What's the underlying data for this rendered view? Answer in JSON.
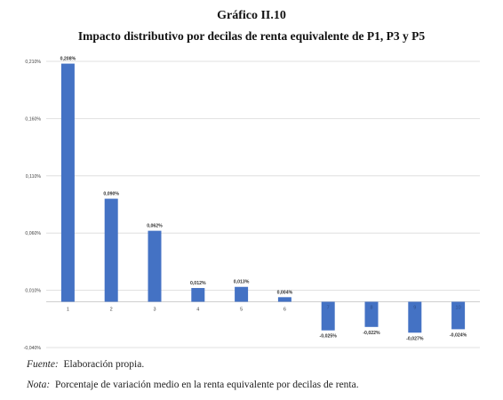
{
  "figure": {
    "label": "Gráfico II.10",
    "title": "Impacto distributivo por decilas de renta equivalente de P1, P3 y P5"
  },
  "chart_data": {
    "type": "bar",
    "title": "Impacto distributivo por decilas de renta equivalente de P1, P3 y P5",
    "categories": [
      "1",
      "2",
      "3",
      "4",
      "5",
      "6",
      "7",
      "8",
      "9",
      "10"
    ],
    "values": [
      0.208,
      0.09,
      0.062,
      0.012,
      0.013,
      0.004,
      -0.025,
      -0.022,
      -0.027,
      -0.024
    ],
    "data_labels": [
      "0,208%",
      "0,090%",
      "0,062%",
      "0,012%",
      "0,013%",
      "0,004%",
      "-0,025%",
      "-0,022%",
      "-0,027%",
      "-0,024%"
    ],
    "yticks": [
      -0.04,
      0.01,
      0.06,
      0.11,
      0.16,
      0.21
    ],
    "ytick_labels": [
      "-0,040%",
      "0,010%",
      "0,060%",
      "0,110%",
      "0,160%",
      "0,210%"
    ],
    "ylim": [
      -0.04,
      0.21
    ],
    "xlabel": "",
    "ylabel": "",
    "grid": true,
    "bar_color": "#4472C4"
  },
  "notes": {
    "source_label": "Fuente:",
    "source_text": "Elaboración propia.",
    "note_label": "Nota:",
    "note_text": "Porcentaje de variación medio en la renta equivalente por decilas de renta."
  }
}
